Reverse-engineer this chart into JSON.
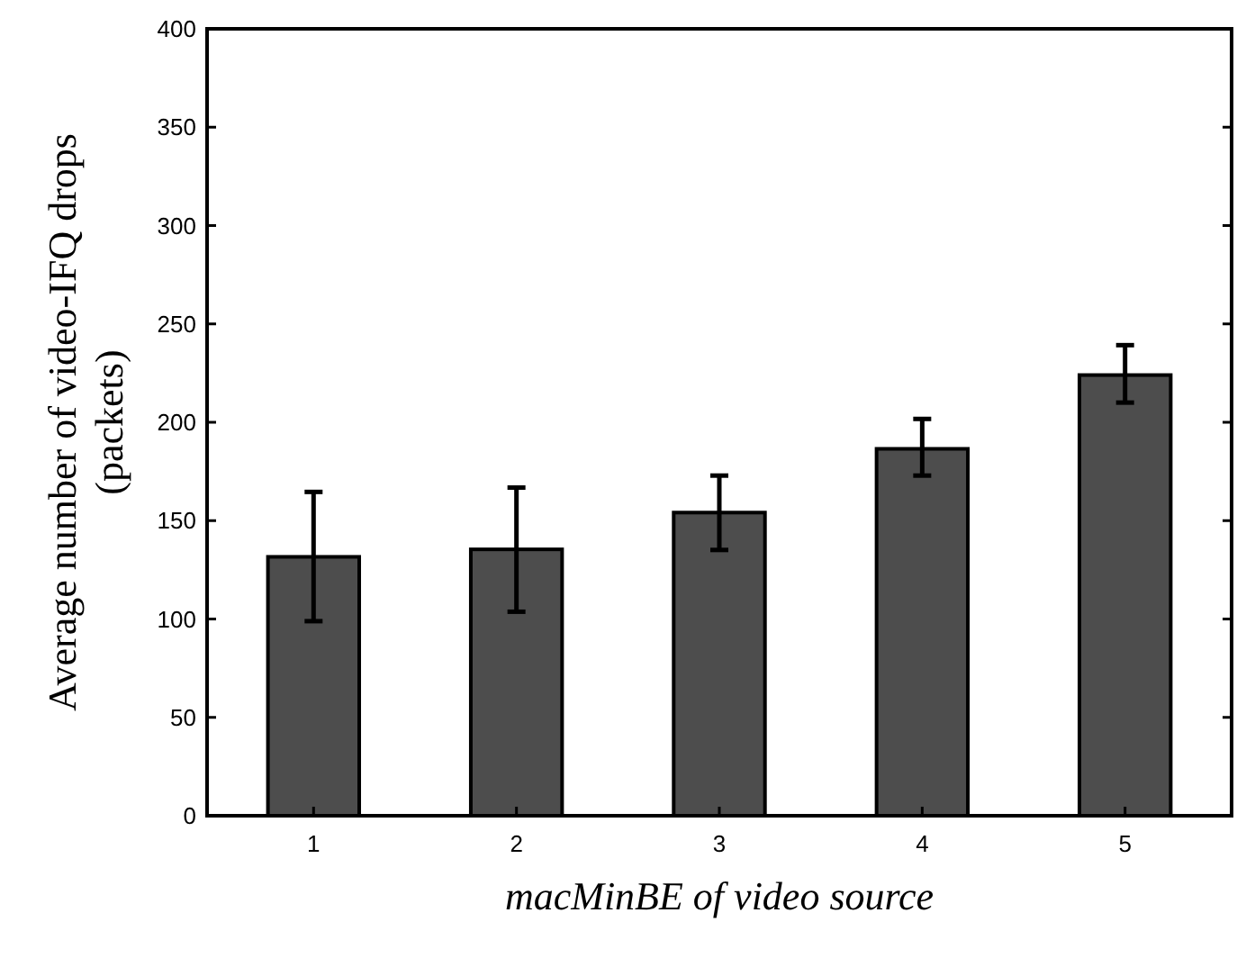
{
  "chart_data": {
    "type": "bar",
    "xlabel": "macMinBE of video source",
    "ylabel": "Average number of video-IFQ drops\n(packets)",
    "categories": [
      "1",
      "2",
      "3",
      "4",
      "5"
    ],
    "values": [
      131.6,
      135.4,
      154.1,
      186.5,
      224
    ],
    "errors": [
      [
        98.9,
        164.6
      ],
      [
        103.7,
        166.8
      ],
      [
        135.1,
        172.9
      ],
      [
        172.9,
        201.7
      ],
      [
        210,
        239.2
      ]
    ],
    "color": "#4d4d4d",
    "ylim": [
      0,
      400
    ],
    "yticks": [
      0,
      50,
      100,
      150,
      200,
      250,
      300,
      350,
      400
    ],
    "grid": false
  }
}
